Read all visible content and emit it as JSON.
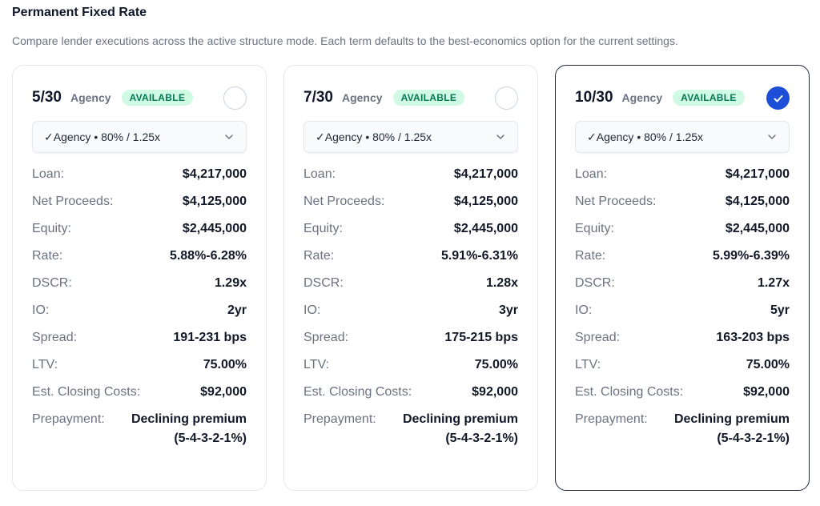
{
  "header": {
    "title": "Permanent Fixed Rate",
    "subtitle": "Compare lender executions across the active structure mode. Each term defaults to the best-economics option for the current settings."
  },
  "labels": {
    "loan": "Loan:",
    "net_proceeds": "Net Proceeds:",
    "equity": "Equity:",
    "rate": "Rate:",
    "dscr": "DSCR:",
    "io": "IO:",
    "spread": "Spread:",
    "ltv": "LTV:",
    "closing_costs": "Est. Closing Costs:",
    "prepayment": "Prepayment:"
  },
  "colors": {
    "accent": "#1d4ed8",
    "badge_bg": "#d1fae5",
    "badge_text": "#047857"
  },
  "cards": [
    {
      "term": "5/30",
      "lender_type": "Agency",
      "badge": "AVAILABLE",
      "selected": false,
      "dropdown": "✓Agency • 80% / 1.25x",
      "loan": "$4,217,000",
      "net_proceeds": "$4,125,000",
      "equity": "$2,445,000",
      "rate": "5.88%-6.28%",
      "dscr": "1.29x",
      "io": "2yr",
      "spread": "191-231 bps",
      "ltv": "75.00%",
      "closing_costs": "$92,000",
      "prepayment": "Declining premium (5-4-3-2-1%)"
    },
    {
      "term": "7/30",
      "lender_type": "Agency",
      "badge": "AVAILABLE",
      "selected": false,
      "dropdown": "✓Agency • 80% / 1.25x",
      "loan": "$4,217,000",
      "net_proceeds": "$4,125,000",
      "equity": "$2,445,000",
      "rate": "5.91%-6.31%",
      "dscr": "1.28x",
      "io": "3yr",
      "spread": "175-215 bps",
      "ltv": "75.00%",
      "closing_costs": "$92,000",
      "prepayment": "Declining premium (5-4-3-2-1%)"
    },
    {
      "term": "10/30",
      "lender_type": "Agency",
      "badge": "AVAILABLE",
      "selected": true,
      "dropdown": "✓Agency • 80% / 1.25x",
      "loan": "$4,217,000",
      "net_proceeds": "$4,125,000",
      "equity": "$2,445,000",
      "rate": "5.99%-6.39%",
      "dscr": "1.27x",
      "io": "5yr",
      "spread": "163-203 bps",
      "ltv": "75.00%",
      "closing_costs": "$92,000",
      "prepayment": "Declining premium (5-4-3-2-1%)"
    }
  ]
}
